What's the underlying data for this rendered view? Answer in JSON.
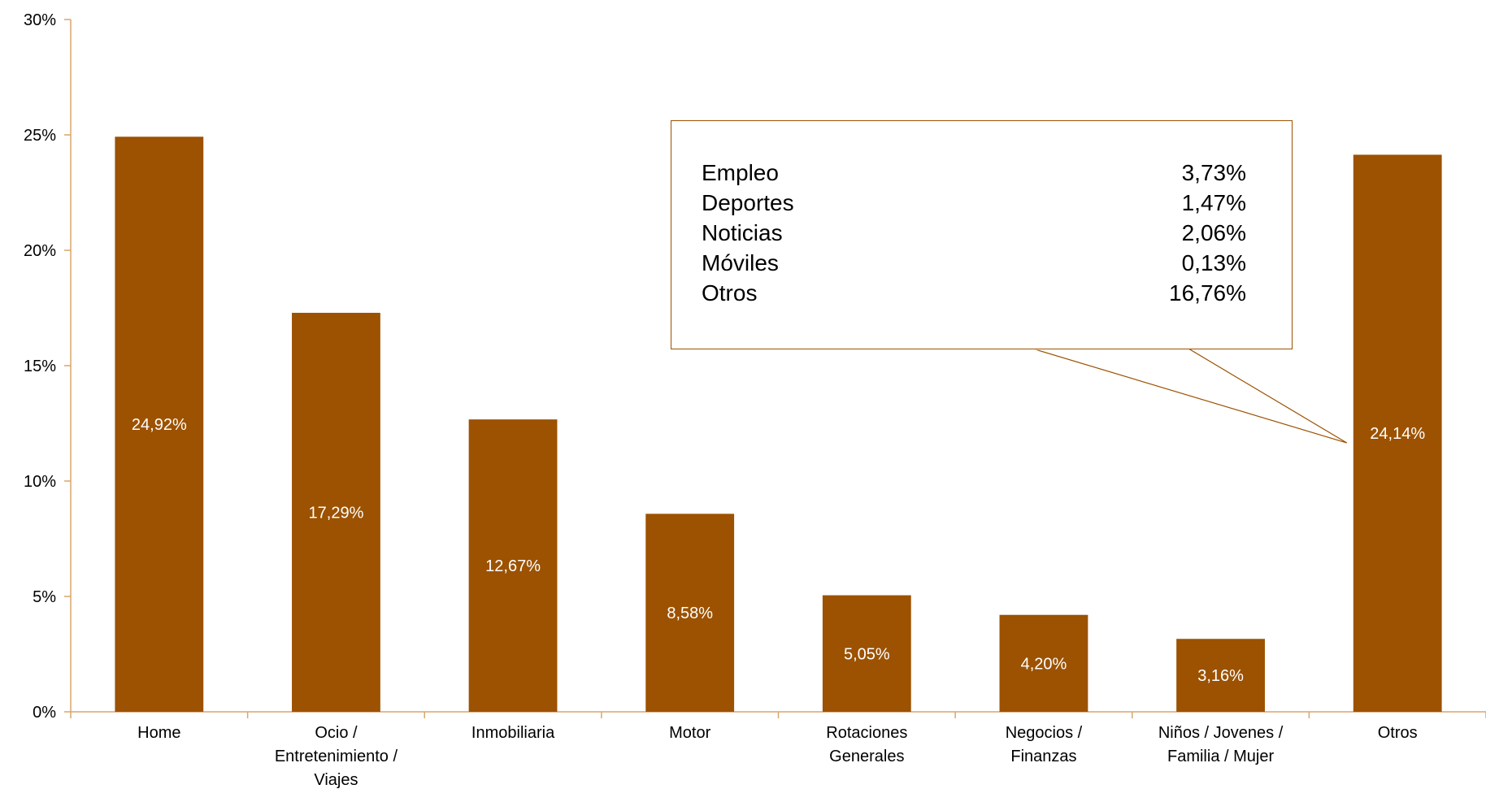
{
  "chart_data": {
    "type": "bar",
    "categories": [
      [
        "Home"
      ],
      [
        "Ocio /",
        "Entretenimiento /",
        "Viajes"
      ],
      [
        "Inmobiliaria"
      ],
      [
        "Motor"
      ],
      [
        "Rotaciones",
        "Generales"
      ],
      [
        "Negocios /",
        "Finanzas"
      ],
      [
        "Niños / Jovenes /",
        "Familia / Mujer"
      ],
      [
        "Otros"
      ]
    ],
    "values": [
      24.92,
      17.29,
      12.67,
      8.58,
      5.05,
      4.2,
      3.16,
      24.14
    ],
    "data_labels": [
      "24,92%",
      "17,29%",
      "12,67%",
      "8,58%",
      "5,05%",
      "4,20%",
      "3,16%",
      "24,14%"
    ],
    "ylim": [
      0,
      30
    ],
    "y_ticks": [
      "0%",
      "5%",
      "10%",
      "15%",
      "20%",
      "25%",
      "30%"
    ],
    "bar_color": "#9C5200",
    "axis_color": "#D9A66B",
    "grid": false,
    "callout": {
      "points_to": "Otros",
      "rows": [
        {
          "label": "Empleo",
          "value": "3,73%"
        },
        {
          "label": "Deportes",
          "value": "1,47%"
        },
        {
          "label": "Noticias",
          "value": "2,06%"
        },
        {
          "label": "Móviles",
          "value": "0,13%"
        },
        {
          "label": "Otros",
          "value": "16,76%"
        }
      ]
    }
  }
}
